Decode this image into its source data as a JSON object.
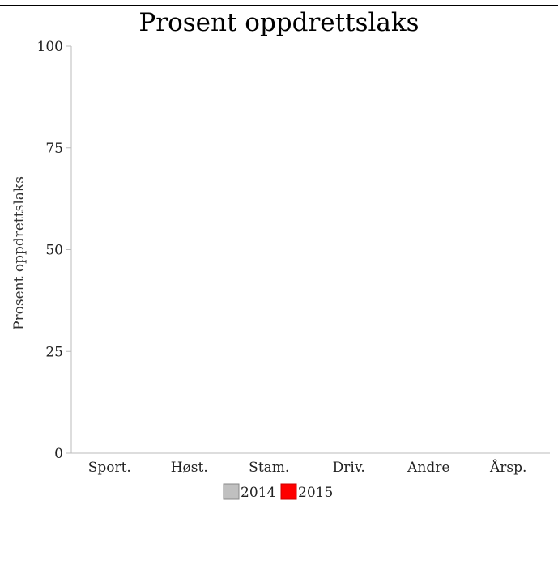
{
  "chart_data": {
    "type": "bar",
    "title": "Prosent oppdrettslaks",
    "ylabel": "Prosent oppdrettslaks",
    "xlabel": "",
    "categories": [
      "Sport.",
      "Høst.",
      "Stam.",
      "Driv.",
      "Andre",
      "Årsp."
    ],
    "ylim": [
      0,
      100
    ],
    "yticks": [
      0,
      25,
      50,
      75,
      100
    ],
    "series": [
      {
        "name": "2014",
        "color": "#c0c0c0",
        "values": [
          null,
          null,
          null,
          null,
          null,
          null
        ]
      },
      {
        "name": "2015",
        "color": "#ff0000",
        "values": [
          null,
          null,
          null,
          null,
          null,
          null
        ]
      }
    ],
    "legend_placement": "bottom-center",
    "grid": false
  }
}
